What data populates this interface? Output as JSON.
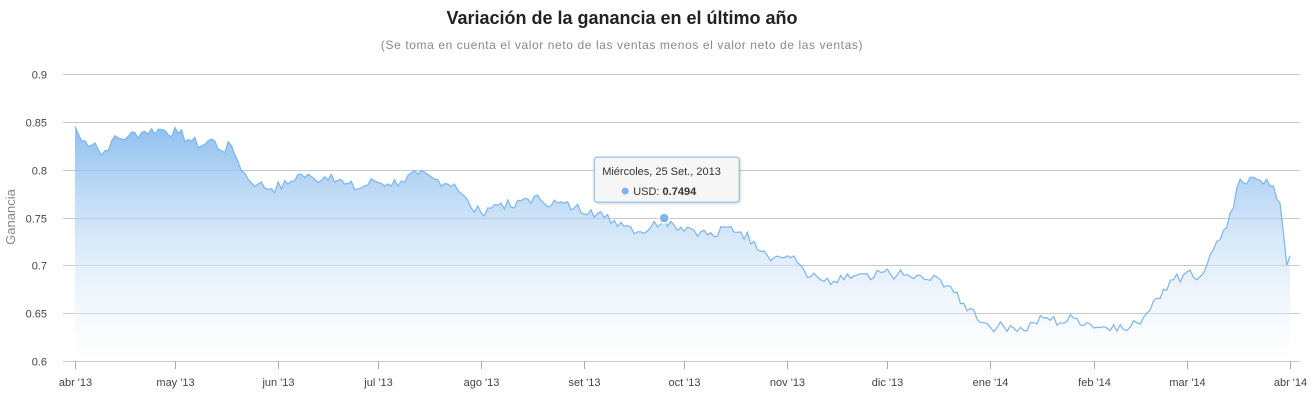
{
  "chart_data": {
    "type": "area",
    "title": "Variación de la ganancia en el último año",
    "subtitle": "(Se toma en cuenta el valor neto de las ventas menos el valor neto de las ventas)",
    "ylabel": "Ganancia",
    "xlabel": "",
    "ylim": [
      0.6,
      0.9
    ],
    "yticks": [
      "0.6",
      "0.65",
      "0.7",
      "0.75",
      "0.8",
      "0.85",
      "0.9"
    ],
    "xlim": [
      "2013-04-01",
      "2014-04-01"
    ],
    "xticks": [
      {
        "date": "2013-04-01",
        "label": "abr '13"
      },
      {
        "date": "2013-05-01",
        "label": "may '13"
      },
      {
        "date": "2013-06-01",
        "label": "jun '13"
      },
      {
        "date": "2013-07-01",
        "label": "jul '13"
      },
      {
        "date": "2013-08-01",
        "label": "ago '13"
      },
      {
        "date": "2013-09-01",
        "label": "set '13"
      },
      {
        "date": "2013-10-01",
        "label": "oct '13"
      },
      {
        "date": "2013-11-01",
        "label": "nov '13"
      },
      {
        "date": "2013-12-01",
        "label": "dic '13"
      },
      {
        "date": "2014-01-01",
        "label": "ene '14"
      },
      {
        "date": "2014-02-01",
        "label": "feb '14"
      },
      {
        "date": "2014-03-01",
        "label": "mar '14"
      },
      {
        "date": "2014-04-01",
        "label": "abr '14"
      }
    ],
    "grid": true,
    "legend": "none",
    "colors": {
      "line": "#7cb5ec",
      "fill_top": "#7cb5ec",
      "fill_bottom": "#ffffff",
      "grid": "#c8c8c8"
    },
    "series": [
      {
        "name": "USD",
        "points": [
          [
            "2013-04-01",
            0.845
          ],
          [
            "2013-04-03",
            0.83
          ],
          [
            "2013-04-07",
            0.828
          ],
          [
            "2013-04-09",
            0.815
          ],
          [
            "2013-04-12",
            0.83
          ],
          [
            "2013-04-17",
            0.835
          ],
          [
            "2013-04-22",
            0.84
          ],
          [
            "2013-04-27",
            0.842
          ],
          [
            "2013-05-02",
            0.838
          ],
          [
            "2013-05-06",
            0.83
          ],
          [
            "2013-05-09",
            0.825
          ],
          [
            "2013-05-12",
            0.832
          ],
          [
            "2013-05-15",
            0.82
          ],
          [
            "2013-05-18",
            0.825
          ],
          [
            "2013-05-20",
            0.808
          ],
          [
            "2013-05-23",
            0.79
          ],
          [
            "2013-05-26",
            0.785
          ],
          [
            "2013-05-30",
            0.78
          ],
          [
            "2013-06-04",
            0.785
          ],
          [
            "2013-06-07",
            0.795
          ],
          [
            "2013-06-12",
            0.79
          ],
          [
            "2013-06-17",
            0.795
          ],
          [
            "2013-06-21",
            0.785
          ],
          [
            "2013-06-25",
            0.78
          ],
          [
            "2013-06-30",
            0.788
          ],
          [
            "2013-07-04",
            0.785
          ],
          [
            "2013-07-08",
            0.788
          ],
          [
            "2013-07-13",
            0.795
          ],
          [
            "2013-07-18",
            0.79
          ],
          [
            "2013-07-24",
            0.785
          ],
          [
            "2013-07-26",
            0.775
          ],
          [
            "2013-07-29",
            0.76
          ],
          [
            "2013-08-01",
            0.755
          ],
          [
            "2013-08-03",
            0.76
          ],
          [
            "2013-08-07",
            0.765
          ],
          [
            "2013-08-11",
            0.76
          ],
          [
            "2013-08-14",
            0.77
          ],
          [
            "2013-08-19",
            0.768
          ],
          [
            "2013-08-24",
            0.765
          ],
          [
            "2013-08-29",
            0.76
          ],
          [
            "2013-09-03",
            0.758
          ],
          [
            "2013-09-07",
            0.75
          ],
          [
            "2013-09-12",
            0.745
          ],
          [
            "2013-09-15",
            0.74
          ],
          [
            "2013-09-18",
            0.735
          ],
          [
            "2013-09-21",
            0.74
          ],
          [
            "2013-09-25",
            0.7494
          ],
          [
            "2013-09-28",
            0.742
          ],
          [
            "2013-10-02",
            0.74
          ],
          [
            "2013-10-06",
            0.735
          ],
          [
            "2013-10-10",
            0.73
          ],
          [
            "2013-10-14",
            0.74
          ],
          [
            "2013-10-18",
            0.735
          ],
          [
            "2013-10-22",
            0.725
          ],
          [
            "2013-10-25",
            0.715
          ],
          [
            "2013-10-28",
            0.708
          ],
          [
            "2013-11-01",
            0.71
          ],
          [
            "2013-11-05",
            0.7
          ],
          [
            "2013-11-08",
            0.688
          ],
          [
            "2013-11-11",
            0.685
          ],
          [
            "2013-11-14",
            0.68
          ],
          [
            "2013-11-18",
            0.685
          ],
          [
            "2013-11-22",
            0.69
          ],
          [
            "2013-11-26",
            0.685
          ],
          [
            "2013-11-30",
            0.693
          ],
          [
            "2013-12-04",
            0.69
          ],
          [
            "2013-12-08",
            0.688
          ],
          [
            "2013-12-13",
            0.685
          ],
          [
            "2013-12-17",
            0.685
          ],
          [
            "2013-12-20",
            0.678
          ],
          [
            "2013-12-23",
            0.66
          ],
          [
            "2013-12-26",
            0.655
          ],
          [
            "2013-12-30",
            0.64
          ],
          [
            "2014-01-03",
            0.635
          ],
          [
            "2014-01-07",
            0.637
          ],
          [
            "2014-01-11",
            0.632
          ],
          [
            "2014-01-14",
            0.64
          ],
          [
            "2014-01-18",
            0.645
          ],
          [
            "2014-01-22",
            0.64
          ],
          [
            "2014-01-26",
            0.645
          ],
          [
            "2014-01-30",
            0.64
          ],
          [
            "2014-02-03",
            0.635
          ],
          [
            "2014-02-07",
            0.638
          ],
          [
            "2014-02-11",
            0.632
          ],
          [
            "2014-02-14",
            0.64
          ],
          [
            "2014-02-17",
            0.65
          ],
          [
            "2014-02-19",
            0.663
          ],
          [
            "2014-02-22",
            0.675
          ],
          [
            "2014-02-25",
            0.685
          ],
          [
            "2014-02-28",
            0.69
          ],
          [
            "2014-03-02",
            0.695
          ],
          [
            "2014-03-04",
            0.685
          ],
          [
            "2014-03-07",
            0.7
          ],
          [
            "2014-03-10",
            0.725
          ],
          [
            "2014-03-13",
            0.74
          ],
          [
            "2014-03-15",
            0.76
          ],
          [
            "2014-03-17",
            0.79
          ],
          [
            "2014-03-19",
            0.785
          ],
          [
            "2014-03-22",
            0.79
          ],
          [
            "2014-03-25",
            0.79
          ],
          [
            "2014-03-27",
            0.783
          ],
          [
            "2014-03-29",
            0.765
          ],
          [
            "2014-03-30",
            0.735
          ],
          [
            "2014-03-31",
            0.7
          ],
          [
            "2014-04-01",
            0.71
          ]
        ]
      }
    ],
    "highlight": {
      "series": "USD",
      "x": "2013-09-25",
      "date_label": "Miércoles, 25 Set., 2013",
      "label": "USD",
      "value": "0.7494"
    }
  }
}
